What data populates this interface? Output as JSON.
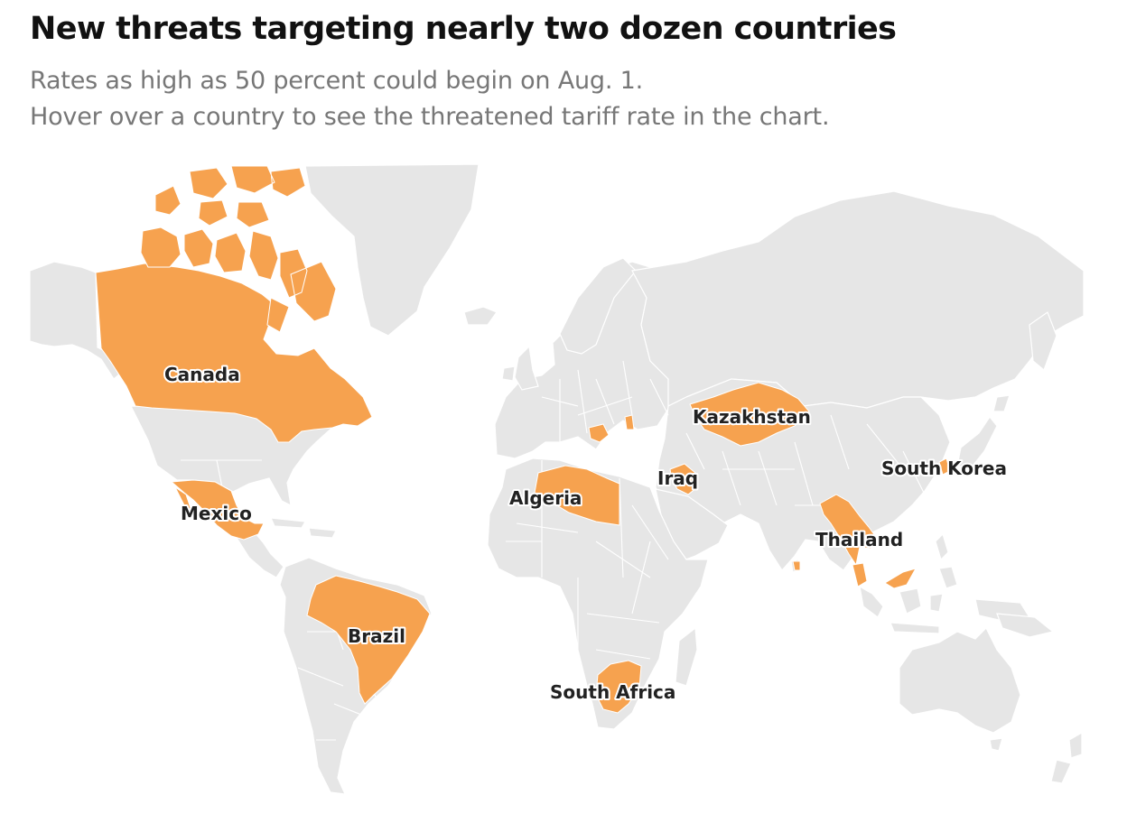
{
  "header": {
    "title": "New threats targeting nearly two dozen countries",
    "subtitle_line1": "Rates as high as 50 percent could begin on Aug. 1.",
    "subtitle_line2": "Hover over a country to see the threatened tariff rate in the chart."
  },
  "map": {
    "colors": {
      "highlight": "#f6a24f",
      "land": "#e6e6e6",
      "border": "#ffffff",
      "background": "#ffffff"
    },
    "labels": {
      "canada": "Canada",
      "mexico": "Mexico",
      "brazil": "Brazil",
      "algeria": "Algeria",
      "south_africa": "South Africa",
      "iraq": "Iraq",
      "kazakhstan": "Kazakhstan",
      "thailand": "Thailand",
      "south_korea": "South Korea"
    }
  }
}
